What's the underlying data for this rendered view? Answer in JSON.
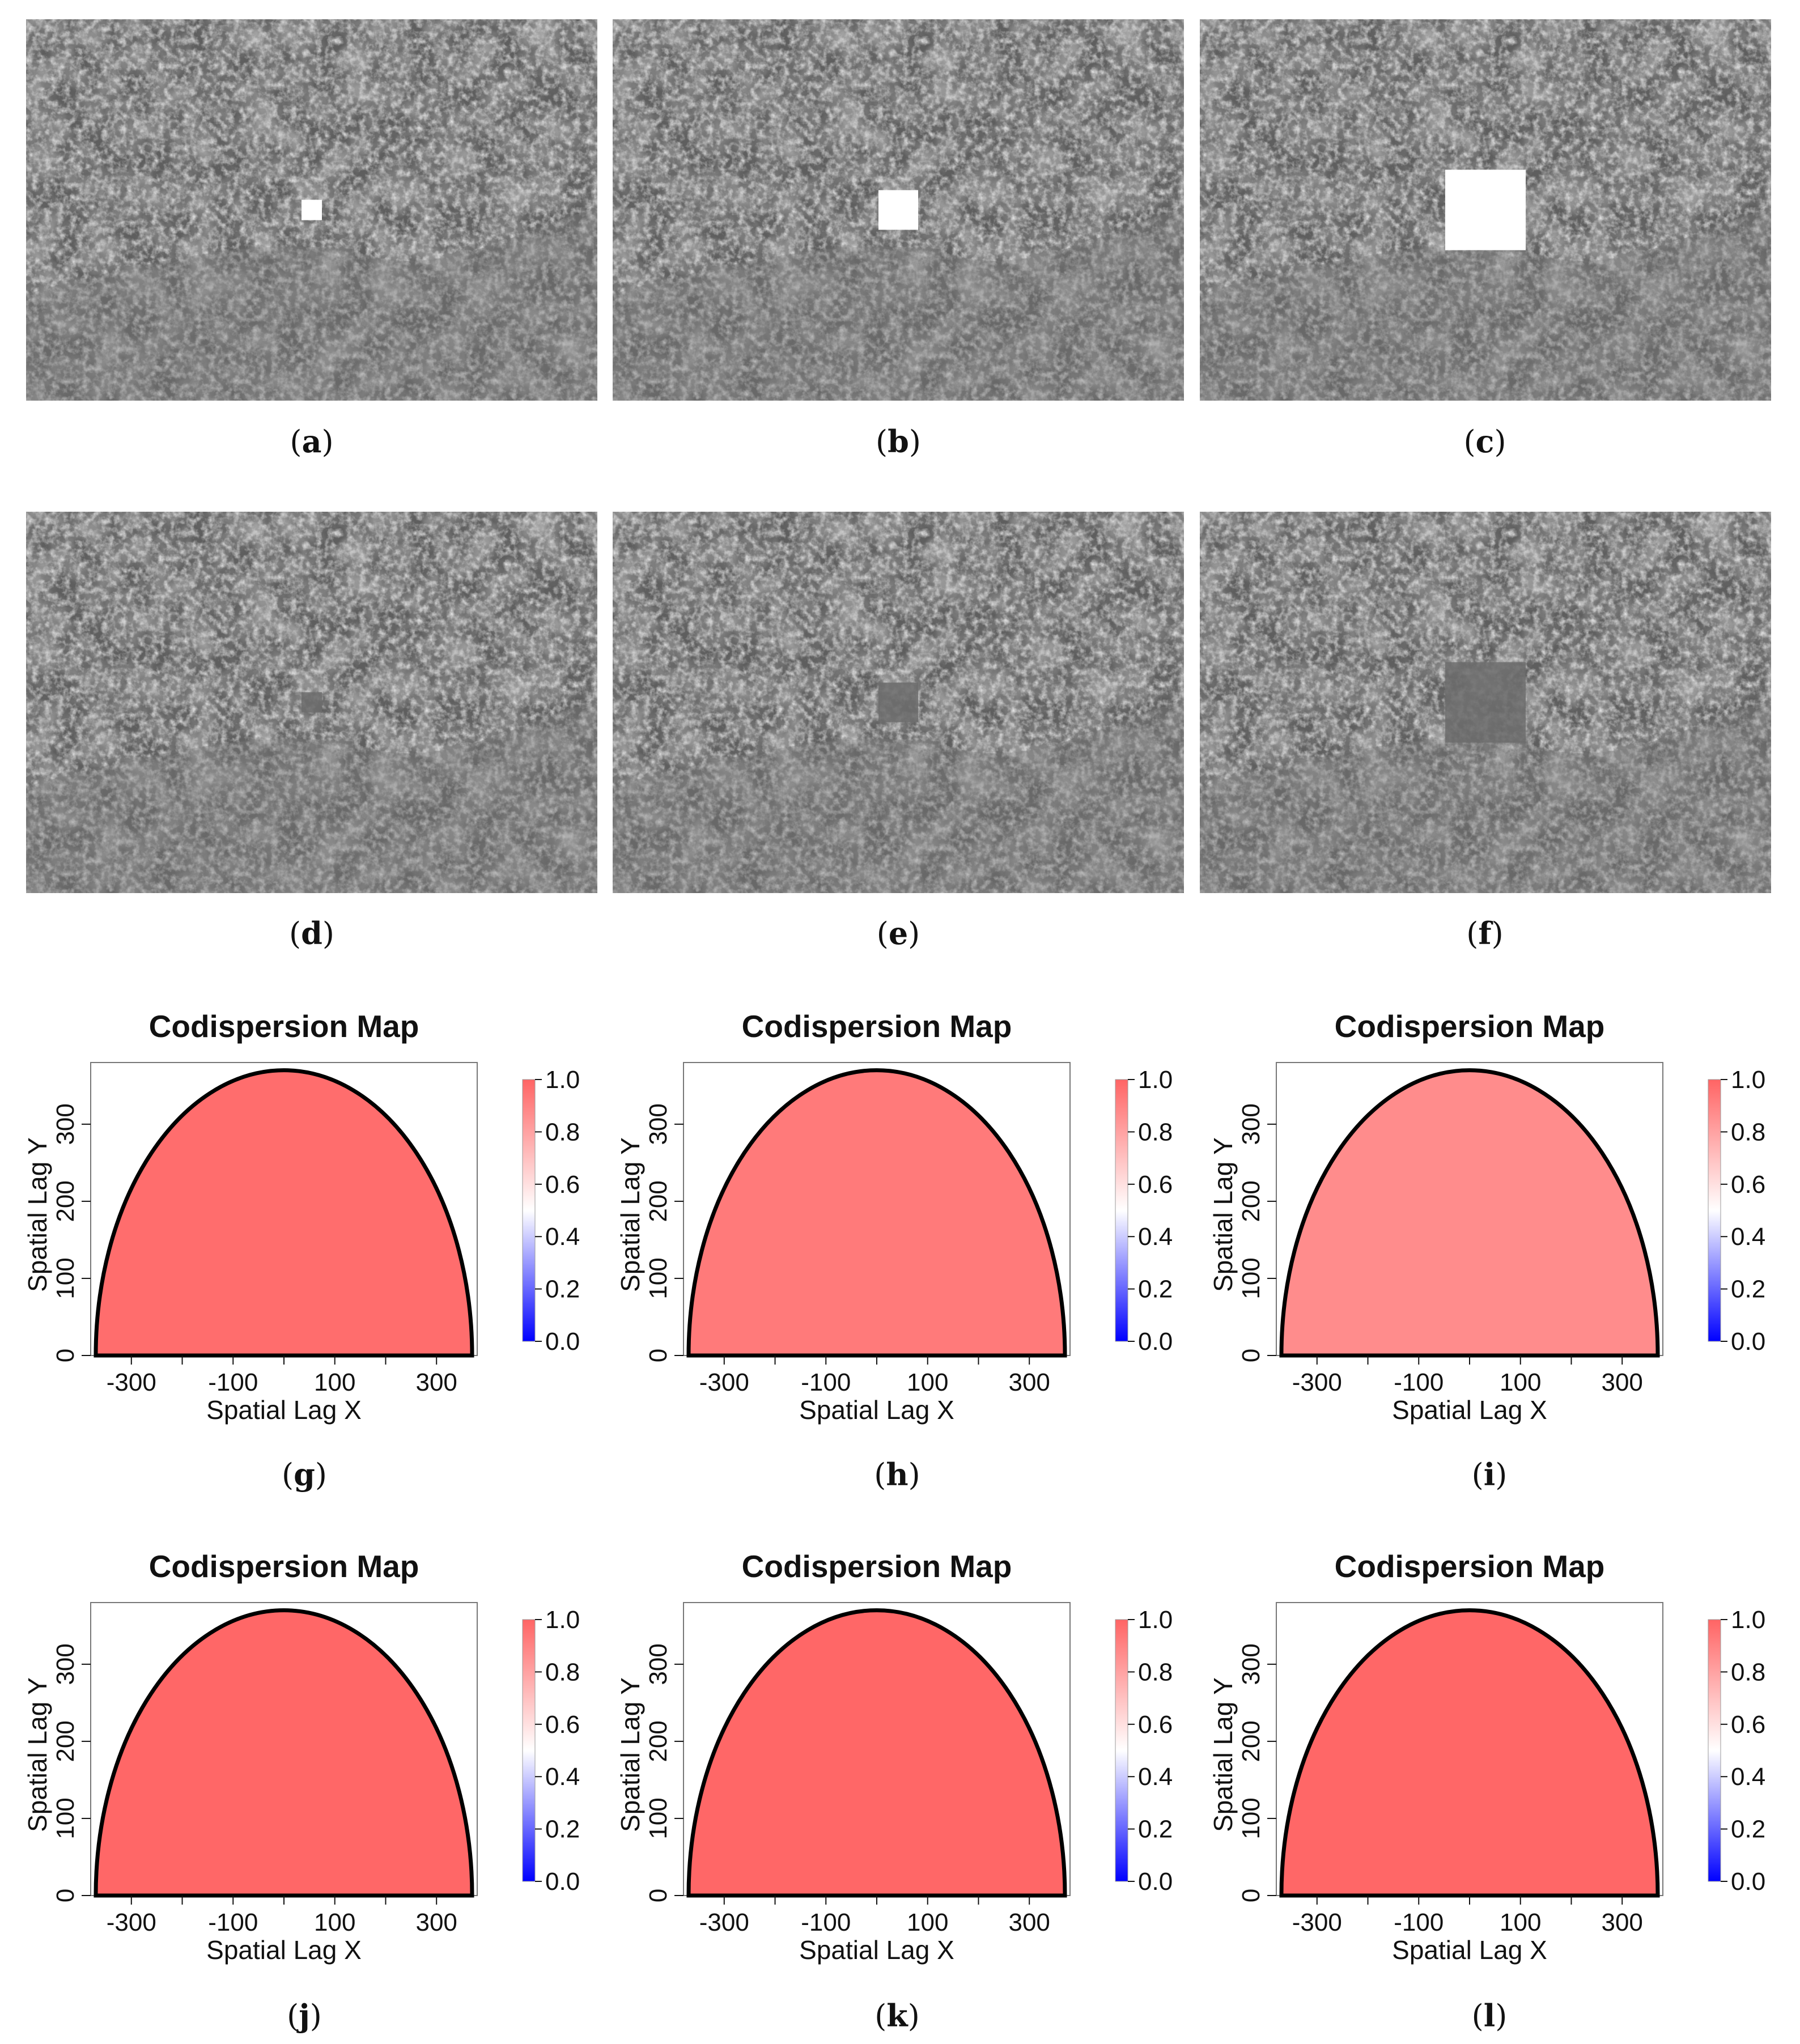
{
  "panels": [
    {
      "id": "a",
      "kind": "photo",
      "mask": "white-square",
      "mask_level": "small"
    },
    {
      "id": "b",
      "kind": "photo",
      "mask": "white-square",
      "mask_level": "medium"
    },
    {
      "id": "c",
      "kind": "photo",
      "mask": "white-square",
      "mask_level": "large"
    },
    {
      "id": "d",
      "kind": "photo",
      "mask": "inpainted",
      "mask_level": "small"
    },
    {
      "id": "e",
      "kind": "photo",
      "mask": "inpainted",
      "mask_level": "medium"
    },
    {
      "id": "f",
      "kind": "photo",
      "mask": "inpainted",
      "mask_level": "large"
    }
  ],
  "captions": {
    "a": "a",
    "b": "b",
    "c": "c",
    "d": "d",
    "e": "e",
    "f": "f",
    "g": "g",
    "h": "h",
    "i": "i",
    "j": "j",
    "k": "k",
    "l": "l"
  },
  "colors": {
    "high": "#ff6464",
    "mid": "#ffffff",
    "low": "#0000ff",
    "photo_base": "#5e5e5e"
  },
  "chart_data": [
    {
      "panel": "g",
      "type": "heatmap",
      "title": "Codispersion Map",
      "xlabel": "Spatial Lag X",
      "ylabel": "Spatial Lag Y",
      "xticks": [
        -300,
        -100,
        100,
        300
      ],
      "yticks": [
        0,
        100,
        200,
        300
      ],
      "xlim": [
        -380,
        380
      ],
      "ylim": [
        0,
        380
      ],
      "colorbar": {
        "range": [
          0.0,
          1.0
        ],
        "ticks": [
          "0.0",
          "0.2",
          "0.4",
          "0.6",
          "0.8",
          "1.0"
        ]
      },
      "region": "half-ellipse",
      "value": 0.97
    },
    {
      "panel": "h",
      "type": "heatmap",
      "title": "Codispersion Map",
      "xlabel": "Spatial Lag X",
      "ylabel": "Spatial Lag Y",
      "xticks": [
        -300,
        -100,
        100,
        300
      ],
      "yticks": [
        0,
        100,
        200,
        300
      ],
      "xlim": [
        -380,
        380
      ],
      "ylim": [
        0,
        380
      ],
      "colorbar": {
        "range": [
          0.0,
          1.0
        ],
        "ticks": [
          "0.0",
          "0.2",
          "0.4",
          "0.6",
          "0.8",
          "1.0"
        ]
      },
      "region": "half-ellipse",
      "value": 0.93
    },
    {
      "panel": "i",
      "type": "heatmap",
      "title": "Codispersion Map",
      "xlabel": "Spatial Lag X",
      "ylabel": "Spatial Lag Y",
      "xticks": [
        -300,
        -100,
        100,
        300
      ],
      "yticks": [
        0,
        100,
        200,
        300
      ],
      "xlim": [
        -380,
        380
      ],
      "ylim": [
        0,
        380
      ],
      "colorbar": {
        "range": [
          0.0,
          1.0
        ],
        "ticks": [
          "0.0",
          "0.2",
          "0.4",
          "0.6",
          "0.8",
          "1.0"
        ]
      },
      "region": "half-ellipse",
      "value": 0.87
    },
    {
      "panel": "j",
      "type": "heatmap",
      "title": "Codispersion Map",
      "xlabel": "Spatial Lag X",
      "ylabel": "Spatial Lag Y",
      "xticks": [
        -300,
        -100,
        100,
        300
      ],
      "yticks": [
        0,
        100,
        200,
        300
      ],
      "xlim": [
        -380,
        380
      ],
      "ylim": [
        0,
        380
      ],
      "colorbar": {
        "range": [
          0.0,
          1.0
        ],
        "ticks": [
          "0.0",
          "0.2",
          "0.4",
          "0.6",
          "0.8",
          "1.0"
        ]
      },
      "region": "half-ellipse",
      "value": 0.99
    },
    {
      "panel": "k",
      "type": "heatmap",
      "title": "Codispersion Map",
      "xlabel": "Spatial Lag X",
      "ylabel": "Spatial Lag Y",
      "xticks": [
        -300,
        -100,
        100,
        300
      ],
      "yticks": [
        0,
        100,
        200,
        300
      ],
      "xlim": [
        -380,
        380
      ],
      "ylim": [
        0,
        380
      ],
      "colorbar": {
        "range": [
          0.0,
          1.0
        ],
        "ticks": [
          "0.0",
          "0.2",
          "0.4",
          "0.6",
          "0.8",
          "1.0"
        ]
      },
      "region": "half-ellipse",
      "value": 0.99
    },
    {
      "panel": "l",
      "type": "heatmap",
      "title": "Codispersion Map",
      "xlabel": "Spatial Lag X",
      "ylabel": "Spatial Lag Y",
      "xticks": [
        -300,
        -100,
        100,
        300
      ],
      "yticks": [
        0,
        100,
        200,
        300
      ],
      "xlim": [
        -380,
        380
      ],
      "ylim": [
        0,
        380
      ],
      "colorbar": {
        "range": [
          0.0,
          1.0
        ],
        "ticks": [
          "0.0",
          "0.2",
          "0.4",
          "0.6",
          "0.8",
          "1.0"
        ]
      },
      "region": "half-ellipse",
      "value": 0.99
    }
  ]
}
